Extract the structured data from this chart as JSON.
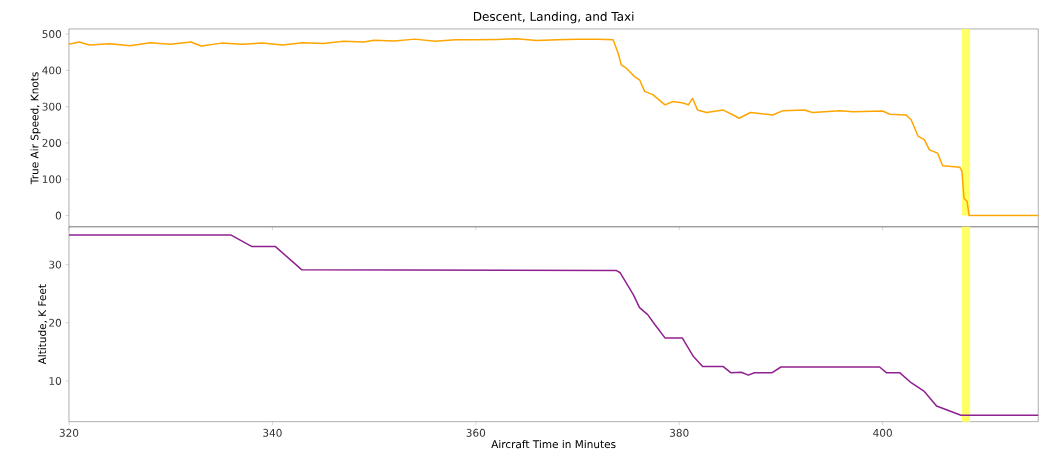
{
  "chart_data": [
    {
      "type": "line",
      "title": "Descent, Landing, and Taxi",
      "ylabel": "True Air Speed, Knots",
      "tick_labels": "y",
      "xlim": [
        320,
        415.3
      ],
      "ylim": [
        -31,
        514
      ],
      "xticks": [
        320,
        340,
        360,
        380,
        400
      ],
      "yticks": [
        0,
        100,
        200,
        300,
        400,
        500
      ],
      "bands": [
        {
          "axis": "x",
          "from": 407.8,
          "to": 408.6,
          "color": "#ffff66"
        }
      ],
      "series": [
        {
          "color": "#ffa500",
          "x": [
            320,
            321,
            322,
            324,
            326,
            328,
            330,
            332,
            333,
            335,
            337,
            339,
            341,
            343,
            345,
            347,
            349,
            350,
            352,
            354,
            356,
            358,
            360,
            362,
            364,
            366,
            368,
            370,
            372,
            373.5,
            374.0,
            374.3,
            374.8,
            375.6,
            376.1,
            376.6,
            377.4,
            378.6,
            379.4,
            380.4,
            380.9,
            381.3,
            381.8,
            382.7,
            384.3,
            385.3,
            385.9,
            387.0,
            389.2,
            390.2,
            392.3,
            393.1,
            395.8,
            397.1,
            400.0,
            400.7,
            402.3,
            402.8,
            403.5,
            404.1,
            404.6,
            405.4,
            405.9,
            407.6,
            407.8,
            408.0,
            408.3,
            408.5,
            415.3
          ],
          "values": [
            472,
            478,
            470,
            473,
            468,
            476,
            472,
            478,
            467,
            475,
            472,
            475,
            470,
            476,
            474,
            480,
            478,
            483,
            481,
            486,
            480,
            484,
            484,
            485,
            487,
            482,
            484,
            486,
            486,
            484,
            447,
            415,
            406,
            383,
            374,
            342,
            333,
            305,
            314,
            310,
            305,
            323,
            291,
            284,
            291,
            277,
            268,
            284,
            277,
            289,
            291,
            284,
            289,
            286,
            288,
            279,
            277,
            264,
            218,
            209,
            181,
            172,
            137,
            133,
            121,
            48,
            39,
            0,
            0
          ]
        }
      ]
    },
    {
      "type": "line",
      "xlabel": "Aircraft Time in Minutes",
      "ylabel": "Altitude, K Feet",
      "xlim": [
        320,
        415.3
      ],
      "ylim": [
        3,
        36.5
      ],
      "xticks": [
        320,
        340,
        360,
        380,
        400
      ],
      "yticks": [
        10,
        20,
        30
      ],
      "bands": [
        {
          "axis": "x",
          "from": 407.8,
          "to": 408.6,
          "color": "#ffff66"
        }
      ],
      "series": [
        {
          "color": "#902090",
          "x": [
            320,
            335.9,
            338.0,
            340.3,
            342.9,
            373.8,
            374.2,
            375.5,
            376.1,
            376.9,
            377.6,
            378.6,
            380.3,
            381.4,
            382.3,
            384.3,
            385.1,
            386.1,
            386.8,
            387.4,
            389.1,
            390.0,
            399.7,
            400.4,
            401.7,
            402.8,
            404.1,
            405.3,
            407.7,
            415.3
          ],
          "values": [
            35.1,
            35.1,
            33.1,
            33.1,
            29.1,
            29.0,
            28.6,
            24.8,
            22.6,
            21.4,
            19.7,
            17.4,
            17.4,
            14.2,
            12.5,
            12.5,
            11.4,
            11.5,
            11.0,
            11.4,
            11.4,
            12.4,
            12.4,
            11.4,
            11.4,
            9.7,
            8.2,
            5.7,
            4.1,
            4.1
          ]
        }
      ]
    }
  ]
}
